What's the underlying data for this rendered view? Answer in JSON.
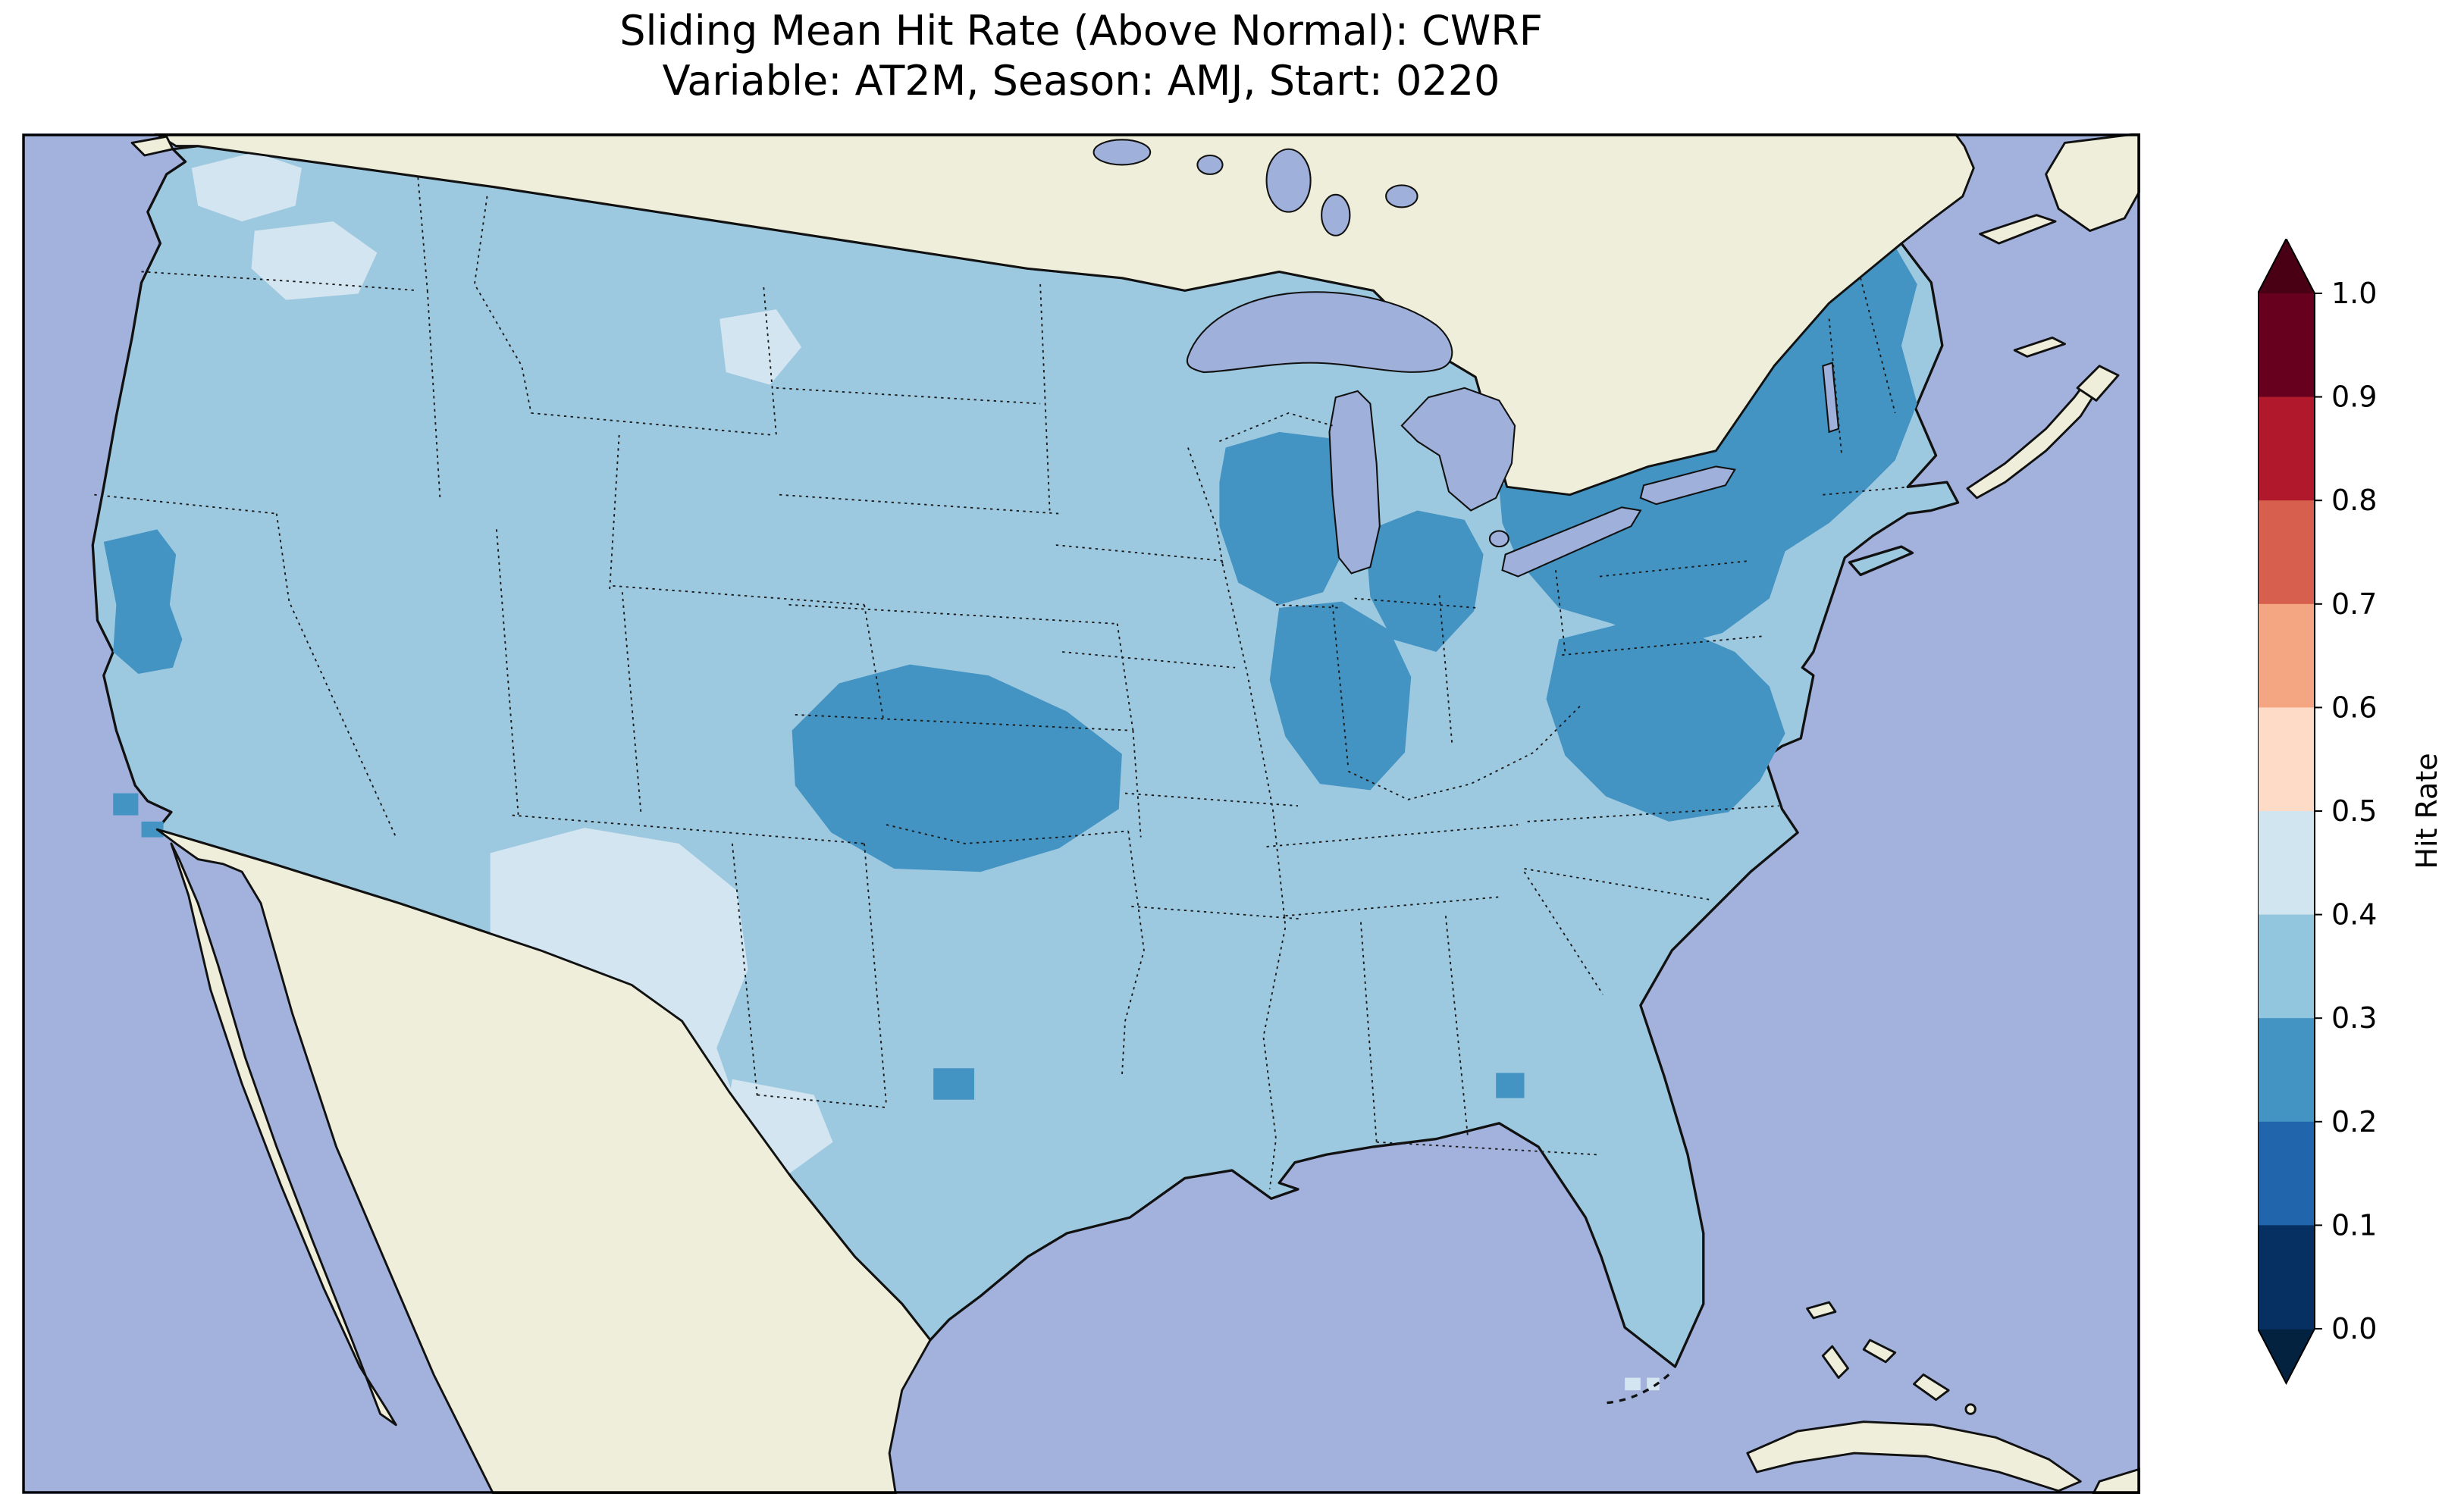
{
  "title": {
    "line1": "Sliding Mean Hit Rate (Above Normal): CWRF",
    "line2": "Variable: AT2M, Season: AMJ, Start: 0220"
  },
  "colorbar": {
    "label": "Hit Rate",
    "ticks": [
      "1.0",
      "0.9",
      "0.8",
      "0.7",
      "0.6",
      "0.5",
      "0.4",
      "0.3",
      "0.2",
      "0.1",
      "0.0"
    ],
    "bin_colors_top_to_bottom": [
      "#67001f",
      "#b2182b",
      "#d6604d",
      "#f4a582",
      "#fddbc7",
      "#d1e5f0",
      "#92c5de",
      "#4393c3",
      "#2166ac",
      "#053061"
    ],
    "over_color": "#4a0014",
    "under_color": "#03223f",
    "extend": "both"
  },
  "map": {
    "palette": {
      "ocean": "#a3b2dd",
      "land": "#efeeda",
      "lake": "#9fb0da",
      "us_main": "#9dc9e0",
      "us_pale": "#d3e5f0",
      "us_dark": "#4393c3"
    }
  },
  "chart_data": {
    "type": "heatmap",
    "title": "Sliding Mean Hit Rate (Above Normal): CWRF",
    "subtitle": "Variable: AT2M, Season: AMJ, Start: 0220",
    "geography": "Contiguous United States gridded hit-rate map with surrounding Canada, Mexico, Gulf of Mexico, Atlantic and Pacific oceans, Caribbean islands",
    "colormap": "RdBu_r, discrete 10 bins from 0.0 to 1.0, extended triangles both ends",
    "colorbar_label": "Hit Rate",
    "colorbar_ticks": [
      1.0,
      0.9,
      0.8,
      0.7,
      0.6,
      0.5,
      0.4,
      0.3,
      0.2,
      0.1,
      0.0
    ],
    "legend_position": "right vertical colorbar",
    "grid": "dotted state and international boundaries",
    "regions": [
      {
        "name": "Most of CONUS (interior West, Plains, South, Midwest, Florida)",
        "hit_rate_bin": "0.3-0.4"
      },
      {
        "name": "New Mexico and far west Texas",
        "hit_rate_bin": "0.4-0.5"
      },
      {
        "name": "Central Washington and Idaho patches",
        "hit_rate_bin": "0.4-0.5"
      },
      {
        "name": "Central Montana small patch",
        "hit_rate_bin": "0.4-0.5"
      },
      {
        "name": "Central Plains (eastern Colorado, Kansas, southern Nebraska)",
        "hit_rate_bin": "0.2-0.3"
      },
      {
        "name": "Upper Midwest / Great Lakes (Wisconsin, Michigan, northern Illinois-Indiana)",
        "hit_rate_bin": "0.2-0.3"
      },
      {
        "name": "Northeast (upstate New York, Pennsylvania, interior New England)",
        "hit_rate_bin": "0.2-0.3"
      },
      {
        "name": "Mid-Atlantic Appalachians (West Virginia, Virginia, Maryland, western North Carolina)",
        "hit_rate_bin": "0.2-0.3"
      },
      {
        "name": "Northern California interior and small coastal spots",
        "hit_rate_bin": "0.2-0.3"
      },
      {
        "name": "Small central Oklahoma patch",
        "hit_rate_bin": "0.2-0.3"
      },
      {
        "name": "Small central Georgia patch",
        "hit_rate_bin": "0.2-0.3"
      }
    ]
  }
}
